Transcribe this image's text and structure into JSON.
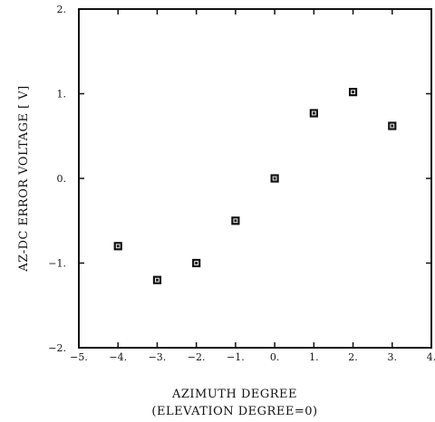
{
  "chart_data": {
    "type": "scatter",
    "xlabel": "AZIMUTH DEGREE",
    "xlabel_sub": "(ELEVATION DEGREE=0)",
    "ylabel": "AZ-DC ERROR VOLTAGE [ V]",
    "xlim": [
      -5,
      4
    ],
    "ylim": [
      -2,
      2
    ],
    "x_ticks": [
      -5,
      -4,
      -3,
      -2,
      -1,
      0,
      1,
      2,
      3,
      4
    ],
    "x_tick_labels": [
      "−5.",
      "−4.",
      "−3.",
      "−2.",
      "−1.",
      "0.",
      "1.",
      "2.",
      "3.",
      "4."
    ],
    "y_ticks": [
      2,
      1,
      0,
      -1,
      -2
    ],
    "y_tick_labels": [
      "2.",
      "1.",
      "0.",
      "−1.",
      "−2."
    ],
    "grid": false,
    "points": [
      {
        "x": -4,
        "y": -0.8
      },
      {
        "x": -3,
        "y": -1.2
      },
      {
        "x": -2,
        "y": -1.0
      },
      {
        "x": -1,
        "y": -0.5
      },
      {
        "x": 0,
        "y": 0.0
      },
      {
        "x": 1,
        "y": 0.77
      },
      {
        "x": 2,
        "y": 1.02
      },
      {
        "x": 3,
        "y": 0.62
      }
    ]
  }
}
